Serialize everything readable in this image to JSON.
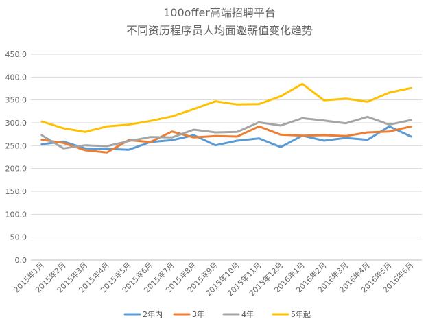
{
  "chart_data": {
    "type": "line",
    "title": "100offer高端招聘平台",
    "subtitle": "不同资历程序员人均面邀薪值变化趋势",
    "xlabel": "",
    "ylabel": "",
    "ylim": [
      0,
      450
    ],
    "yticks": [
      "0.0",
      "50.0",
      "100.0",
      "150.0",
      "200.0",
      "250.0",
      "300.0",
      "350.0",
      "400.0",
      "450.0"
    ],
    "grid": true,
    "legend_position": "bottom",
    "categories": [
      "2015年1月",
      "2015年2月",
      "2015年3月",
      "2015年4月",
      "2015年5月",
      "2015年6月",
      "2015年7月",
      "2015年8月",
      "2015年9月",
      "2015年10月",
      "2015年11月",
      "2015年12月",
      "2016年1月",
      "2016年2月",
      "2016年3月",
      "2016年4月",
      "2016年5月",
      "2016年6月"
    ],
    "series": [
      {
        "name": "2年内",
        "color": "#5b9bd5",
        "values": [
          253,
          259,
          244,
          243,
          241,
          258,
          262,
          273,
          251,
          261,
          266,
          247,
          272,
          261,
          267,
          263,
          292,
          270
        ]
      },
      {
        "name": "3年",
        "color": "#ed7d31",
        "values": [
          263,
          256,
          240,
          235,
          262,
          258,
          281,
          268,
          271,
          270,
          292,
          274,
          272,
          273,
          271,
          279,
          281,
          292
        ]
      },
      {
        "name": "4年",
        "color": "#a5a5a5",
        "values": [
          273,
          244,
          251,
          249,
          260,
          269,
          268,
          285,
          279,
          280,
          301,
          294,
          310,
          305,
          299,
          313,
          296,
          306
        ]
      },
      {
        "name": "5年起",
        "color": "#ffc000",
        "values": [
          303,
          288,
          280,
          292,
          296,
          304,
          314,
          330,
          347,
          340,
          341,
          358,
          385,
          349,
          353,
          346,
          366,
          376
        ]
      }
    ]
  }
}
